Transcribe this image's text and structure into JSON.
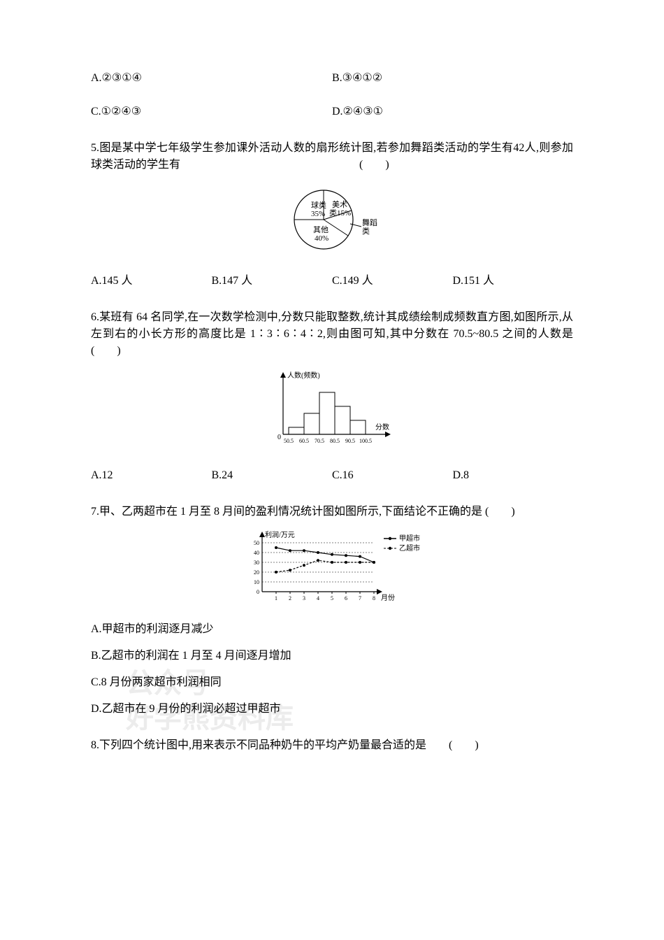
{
  "q4": {
    "A": "A.②③①④",
    "B": "B.③④①②",
    "C": "C.①②④③",
    "D": "D.②④③①"
  },
  "q5": {
    "text": "5.图是某中学七年级学生参加课外活动人数的扇形统计图,若参加舞蹈类活动的学生有42人,则参加球类活动的学生有　　　　　　　　　　　　　　　　(　　)",
    "pie": {
      "labels": {
        "ball": "球类",
        "ballPct": "35%",
        "art": "美术",
        "artPct": "类15%",
        "dance": "舞蹈",
        "danceSuffix": "类",
        "other": "其他",
        "otherPct": "40%"
      }
    },
    "A": "A.145 人",
    "B": "B.147 人",
    "C": "C.149 人",
    "D": "D.151 人"
  },
  "q6": {
    "text": "6.某班有 64 名同学,在一次数学检测中,分数只能取整数,统计其成绩绘制成频数直方图,如图所示,从左到右的小长方形的高度比是 1∶3∶6∶4∶2,则由图可知,其中分数在 70.5~80.5 之间的人数是　　　　　　　(　　)",
    "hist": {
      "ylabel": "人数(频数)",
      "xlabel": "分数",
      "ticks": [
        "50.5",
        "60.5",
        "70.5",
        "80.5",
        "90.5",
        "100.5"
      ],
      "heights": [
        1,
        3,
        6,
        4,
        2
      ]
    },
    "A": "A.12",
    "B": "B.24",
    "C": "C.16",
    "D": "D.8"
  },
  "q7": {
    "text": "7.甲、乙两超市在 1 月至 8 月间的盈利情况统计图如图所示,下面结论不正确的是 (　　)",
    "chart": {
      "ylabel": "利润/万元",
      "xlabel": "月份",
      "legend": {
        "jia": "甲超市",
        "yi": "乙超市"
      },
      "yticks": [
        0,
        10,
        20,
        30,
        40,
        50
      ],
      "xticks": [
        1,
        2,
        3,
        4,
        5,
        6,
        7,
        8
      ],
      "series_jia": [
        45,
        42,
        42,
        40,
        38,
        37,
        36,
        30
      ],
      "series_yi": [
        20,
        22,
        27,
        32,
        30,
        30,
        30,
        30
      ]
    },
    "A": "A.甲超市的利润逐月减少",
    "B": "B.乙超市的利润在 1 月至 4 月间逐月增加",
    "C": "C.8 月份两家超市利润相同",
    "D": "D.乙超市在 9 月份的利润必超过甲超市"
  },
  "q8": {
    "text": "8.下列四个统计图中,用来表示不同品种奶牛的平均产奶量最合适的是　　(　　)"
  },
  "watermark": {
    "line1": "公众号",
    "line2": "好学熊资料库"
  }
}
